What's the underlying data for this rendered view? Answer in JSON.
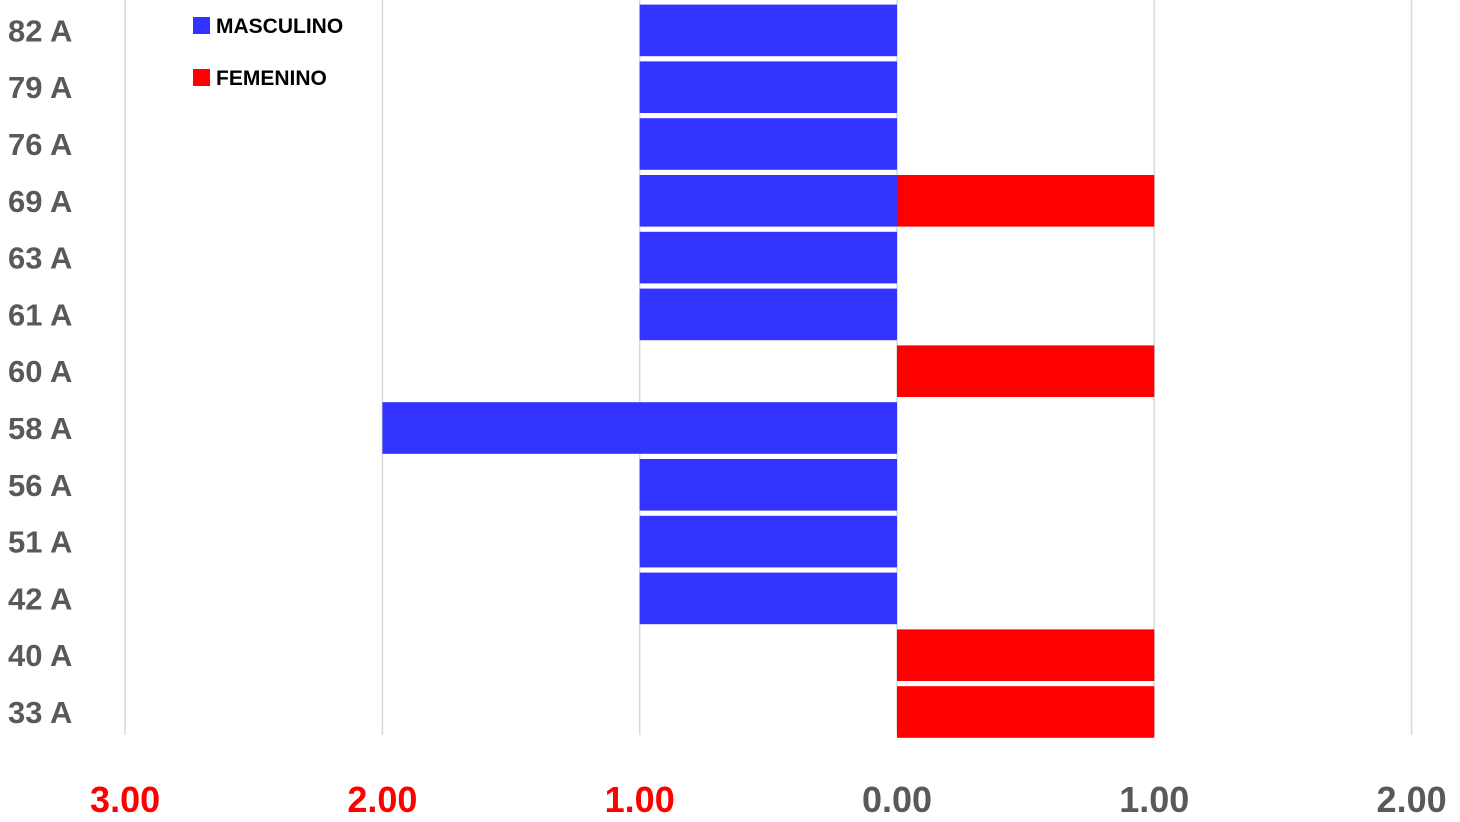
{
  "chart_data": {
    "type": "bar",
    "orientation": "horizontal",
    "layout": "population-pyramid",
    "categories": [
      "82 A",
      "79 A",
      "76 A",
      "69 A",
      "63 A",
      "61 A",
      "60 A",
      "58 A",
      "56 A",
      "51 A",
      "42 A",
      "40 A",
      "33 A"
    ],
    "series": [
      {
        "name": "MASCULINO",
        "color": "#3333ff",
        "side": "left",
        "values": [
          1,
          1,
          1,
          1,
          1,
          1,
          0,
          2,
          1,
          1,
          1,
          0,
          0
        ]
      },
      {
        "name": "FEMENINO",
        "color": "#ff0000",
        "side": "right",
        "values": [
          0,
          0,
          0,
          1,
          0,
          0,
          1,
          0,
          0,
          0,
          0,
          1,
          1
        ]
      }
    ],
    "x_ticks": [
      {
        "value": -3,
        "label": "3.00",
        "color": "#ff0000"
      },
      {
        "value": -2,
        "label": "2.00",
        "color": "#ff0000"
      },
      {
        "value": -1,
        "label": "1.00",
        "color": "#ff0000"
      },
      {
        "value": 0,
        "label": "0.00",
        "color": "#595959"
      },
      {
        "value": 1,
        "label": "1.00",
        "color": "#595959"
      },
      {
        "value": 2,
        "label": "2.00",
        "color": "#595959"
      }
    ],
    "xlim": [
      -3,
      2
    ],
    "grid": "vertical",
    "legend_position": "top-left",
    "title": "",
    "xlabel": "",
    "ylabel": ""
  }
}
